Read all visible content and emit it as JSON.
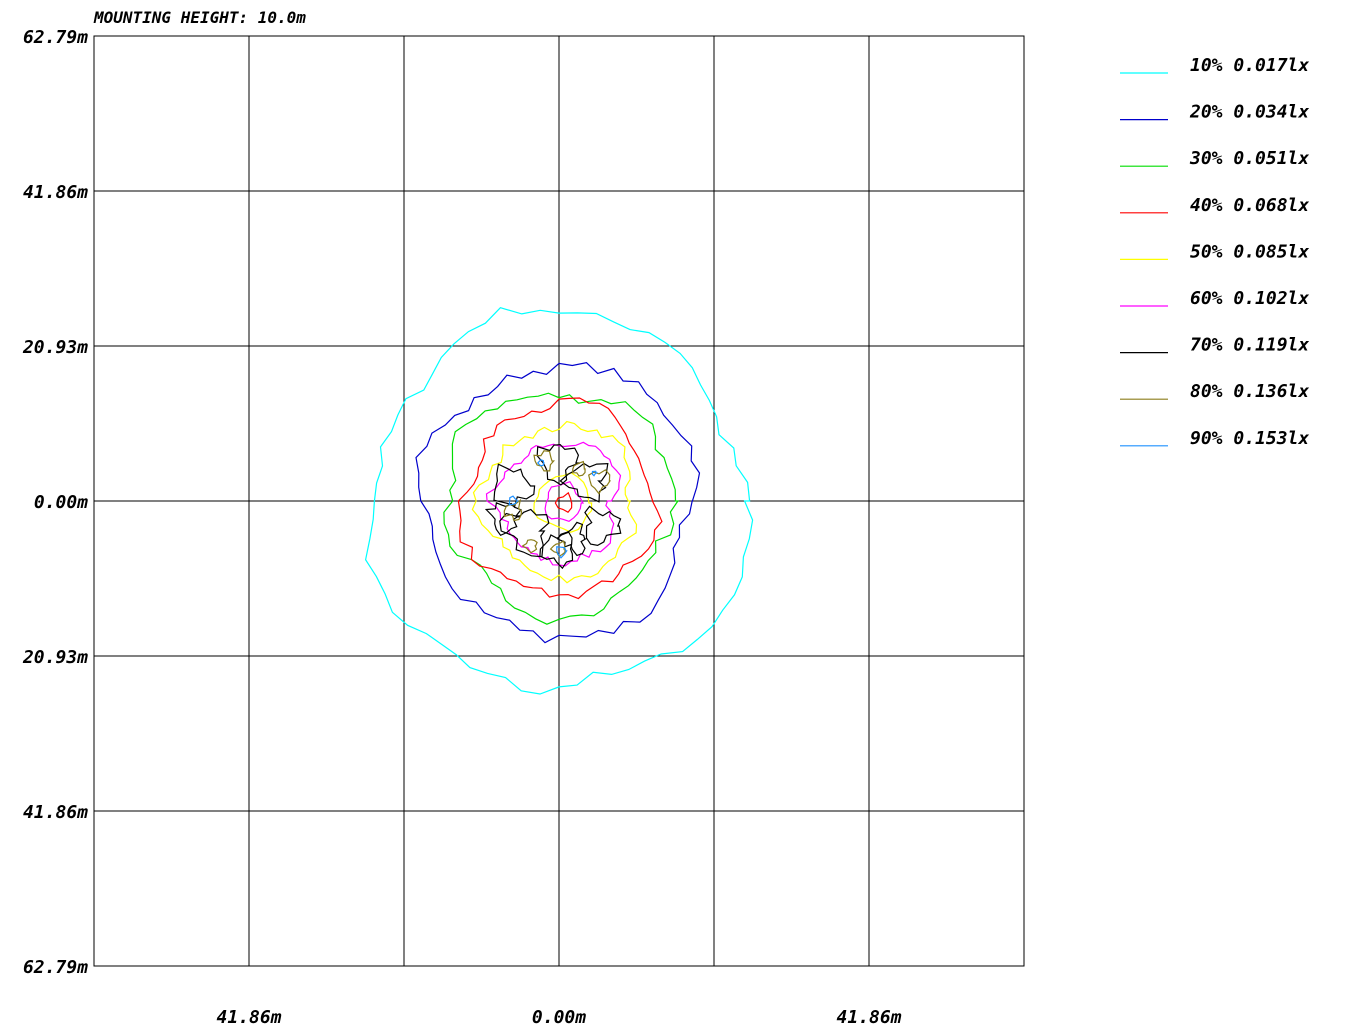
{
  "chart_data": {
    "type": "contour",
    "title": "MOUNTING HEIGHT: 10.0m",
    "y_tick_labels": [
      "62.79m",
      "41.86m",
      "20.93m",
      "0.00m",
      "20.93m",
      "41.86m",
      "62.79m"
    ],
    "x_tick_labels": [
      "41.86m",
      "0.00m",
      "41.86m"
    ],
    "grid": true,
    "legend_position": "right",
    "legend": [
      {
        "label": "10% 0.017lx",
        "color": "#00ffff"
      },
      {
        "label": "20% 0.034lx",
        "color": "#0000cc"
      },
      {
        "label": "30% 0.051lx",
        "color": "#00dd00"
      },
      {
        "label": "40% 0.068lx",
        "color": "#ff0000"
      },
      {
        "label": "50% 0.085lx",
        "color": "#ffff00"
      },
      {
        "label": "60% 0.102lx",
        "color": "#ff00ff"
      },
      {
        "label": "70% 0.119lx",
        "color": "#000000"
      },
      {
        "label": "80% 0.136lx",
        "color": "#8b7d1a"
      },
      {
        "label": "90% 0.153lx",
        "color": "#1e90ff"
      }
    ]
  }
}
